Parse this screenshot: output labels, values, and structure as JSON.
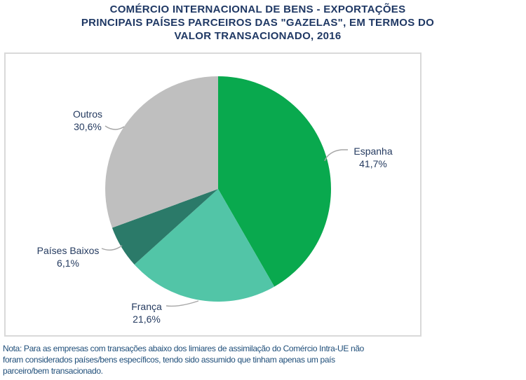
{
  "title_lines": [
    "COMÉRCIO INTERNACIONAL DE BENS - EXPORTAÇÕES",
    "PRINCIPAIS PAÍSES PARCEIROS DAS \"GAZELAS\", EM TERMOS DO",
    "VALOR TRANSACIONADO, 2016"
  ],
  "chart_data": {
    "type": "pie",
    "title": "COMÉRCIO INTERNACIONAL DE BENS - EXPORTAÇÕES PRINCIPAIS PAÍSES PARCEIROS DAS \"GAZELAS\", EM TERMOS DO VALOR TRANSACIONADO, 2016",
    "unit": "%",
    "start_angle": "12-oclock",
    "direction": "clockwise",
    "slices": [
      {
        "label": "Espanha",
        "value": 41.7,
        "display": "41,7%",
        "color": "#09A94E"
      },
      {
        "label": "França",
        "value": 21.6,
        "display": "21,6%",
        "color": "#52C5A7"
      },
      {
        "label": "Países Baixos",
        "value": 6.1,
        "display": "6,1%",
        "color": "#2B7A69"
      },
      {
        "label": "Outros",
        "value": 30.6,
        "display": "30,6%",
        "color": "#BFBFBF"
      }
    ],
    "leader_line_color": "#A6A6A6",
    "label_text_color": "#253B60",
    "legend": "none"
  },
  "note_lines": [
    "Nota: Para as empresas com transações abaixo dos limiares de assimilação do Comércio Intra-UE não",
    "foram considerados países/bens específicos, tendo sido assumido que tinham apenas um país",
    "parceiro/bem transacionado."
  ]
}
